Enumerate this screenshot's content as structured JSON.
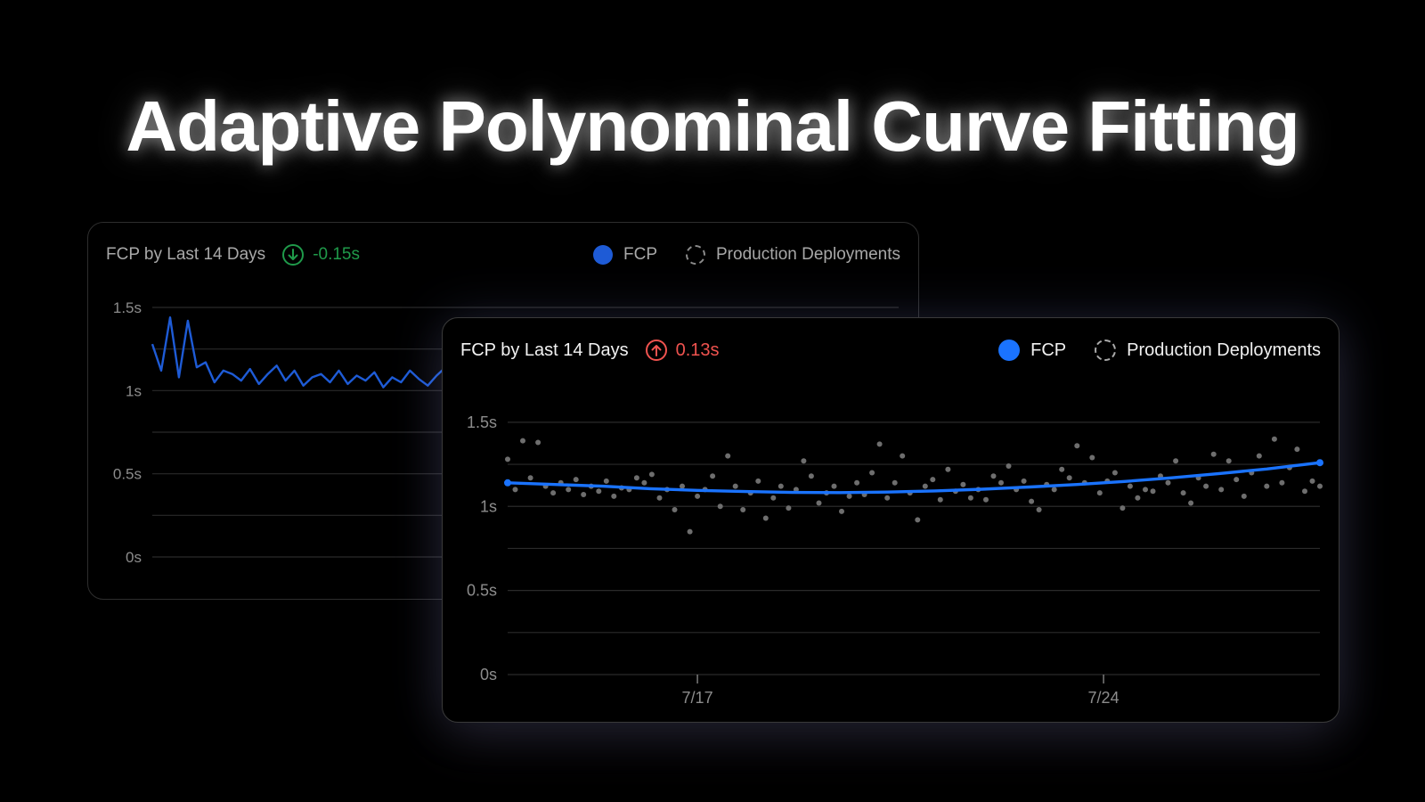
{
  "page": {
    "title": "Adaptive Polynominal Curve Fitting"
  },
  "colors": {
    "fcp_back": "#1e5bd6",
    "fcp_front": "#1a73ff",
    "points": "#6e6e6e",
    "delta_down": "#1f9a4a",
    "delta_up": "#f0534f"
  },
  "cards": {
    "back": {
      "title": "FCP by Last 14 Days",
      "delta": "-0.15s",
      "delta_icon": "arrow-down-circle-icon",
      "legend": {
        "fcp": "FCP",
        "deployments": "Production Deployments"
      }
    },
    "front": {
      "title": "FCP by Last 14 Days",
      "delta": "0.13s",
      "delta_icon": "arrow-up-circle-icon",
      "legend": {
        "fcp": "FCP",
        "deployments": "Production Deployments"
      }
    }
  },
  "chart_data": [
    {
      "type": "line",
      "title": "FCP by Last 14 Days",
      "y_ticks": [
        "0s",
        "0.5s",
        "1s",
        "1.5s"
      ],
      "ylim": [
        0,
        1.5
      ],
      "x_ticks": [
        "7/17"
      ],
      "x_tick_positions": [
        1.0
      ],
      "grid": true,
      "xlim": [
        0,
        1.68
      ],
      "series": [
        {
          "name": "FCP",
          "x": [
            0.0,
            0.02,
            0.04,
            0.06,
            0.08,
            0.1,
            0.12,
            0.14,
            0.16,
            0.18,
            0.2,
            0.22,
            0.24,
            0.26,
            0.28,
            0.3,
            0.32,
            0.34,
            0.36,
            0.38,
            0.4,
            0.42,
            0.44,
            0.46,
            0.48,
            0.5,
            0.52,
            0.54,
            0.56,
            0.58,
            0.6,
            0.62,
            0.64,
            0.66,
            0.68,
            0.7,
            0.72,
            0.74,
            0.76,
            0.78,
            0.8,
            0.82,
            0.84,
            0.86,
            0.88,
            0.9,
            0.92,
            0.94,
            0.96,
            0.98,
            1.0,
            1.02,
            1.04,
            1.06,
            1.08,
            1.1,
            1.12,
            1.14,
            1.16,
            1.18,
            1.2,
            1.22,
            1.24,
            1.26,
            1.28,
            1.3,
            1.32,
            1.34,
            1.36,
            1.38,
            1.4,
            1.42,
            1.44,
            1.46,
            1.48,
            1.5,
            1.52,
            1.54,
            1.56,
            1.58,
            1.6
          ],
          "y": [
            1.28,
            1.12,
            1.44,
            1.08,
            1.42,
            1.14,
            1.17,
            1.05,
            1.12,
            1.1,
            1.06,
            1.13,
            1.04,
            1.1,
            1.15,
            1.06,
            1.12,
            1.03,
            1.08,
            1.1,
            1.05,
            1.12,
            1.04,
            1.09,
            1.06,
            1.11,
            1.02,
            1.08,
            1.05,
            1.12,
            1.07,
            1.03,
            1.09,
            1.14,
            1.06,
            1.1,
            1.15,
            1.05,
            1.12,
            1.08,
            0.96,
            1.12,
            0.88,
            1.06,
            1.1,
            1.0,
            1.14,
            0.98,
            1.06,
            1.12,
            1.08,
            1.3,
            1.02,
            1.06,
            0.97,
            1.1,
            1.04,
            1.08,
            0.95,
            1.06,
            1.1,
            1.02,
            1.04,
            1.2,
            0.98,
            1.08,
            1.12,
            1.34,
            1.06,
            1.1,
            1.04,
            1.12,
            1.07,
            1.02,
            1.1,
            1.05,
            1.13,
            1.08,
            1.04,
            1.1,
            1.06
          ]
        }
      ]
    },
    {
      "type": "scatter",
      "title": "FCP by Last 14 Days",
      "y_ticks": [
        "0s",
        "0.5s",
        "1s",
        "1.5s"
      ],
      "ylim": [
        0,
        1.6
      ],
      "x_ticks": [
        "7/17",
        "7/24"
      ],
      "x_tick_positions": [
        1.0,
        3.14
      ],
      "grid": true,
      "xlim": [
        0,
        4.28
      ],
      "series": [
        {
          "name": "FCP",
          "kind": "trend",
          "x": [
            0.0,
            0.25,
            0.5,
            0.75,
            1.0,
            1.25,
            1.5,
            1.75,
            2.0,
            2.25,
            2.5,
            2.75,
            3.0,
            3.25,
            3.5,
            3.75,
            4.0,
            4.28
          ],
          "y": [
            1.14,
            1.13,
            1.12,
            1.105,
            1.095,
            1.088,
            1.083,
            1.082,
            1.085,
            1.092,
            1.102,
            1.115,
            1.13,
            1.148,
            1.17,
            1.195,
            1.222,
            1.26
          ]
        },
        {
          "name": "",
          "kind": "points",
          "x": [
            0.0,
            0.04,
            0.08,
            0.12,
            0.16,
            0.2,
            0.24,
            0.28,
            0.32,
            0.36,
            0.4,
            0.44,
            0.48,
            0.52,
            0.56,
            0.6,
            0.64,
            0.68,
            0.72,
            0.76,
            0.8,
            0.84,
            0.88,
            0.92,
            0.96,
            1.0,
            1.04,
            1.08,
            1.12,
            1.16,
            1.2,
            1.24,
            1.28,
            1.32,
            1.36,
            1.4,
            1.44,
            1.48,
            1.52,
            1.56,
            1.6,
            1.64,
            1.68,
            1.72,
            1.76,
            1.8,
            1.84,
            1.88,
            1.92,
            1.96,
            2.0,
            2.04,
            2.08,
            2.12,
            2.16,
            2.2,
            2.24,
            2.28,
            2.32,
            2.36,
            2.4,
            2.44,
            2.48,
            2.52,
            2.56,
            2.6,
            2.64,
            2.68,
            2.72,
            2.76,
            2.8,
            2.84,
            2.88,
            2.92,
            2.96,
            3.0,
            3.04,
            3.08,
            3.12,
            3.16,
            3.2,
            3.24,
            3.28,
            3.32,
            3.36,
            3.4,
            3.44,
            3.48,
            3.52,
            3.56,
            3.6,
            3.64,
            3.68,
            3.72,
            3.76,
            3.8,
            3.84,
            3.88,
            3.92,
            3.96,
            4.0,
            4.04,
            4.08,
            4.12,
            4.16,
            4.2,
            4.24,
            4.28
          ],
          "y": [
            1.28,
            1.1,
            1.39,
            1.17,
            1.38,
            1.12,
            1.08,
            1.14,
            1.1,
            1.16,
            1.07,
            1.12,
            1.09,
            1.15,
            1.06,
            1.11,
            1.1,
            1.17,
            1.14,
            1.19,
            1.05,
            1.1,
            0.98,
            1.12,
            0.85,
            1.06,
            1.1,
            1.18,
            1.0,
            1.3,
            1.12,
            0.98,
            1.08,
            1.15,
            0.93,
            1.05,
            1.12,
            0.99,
            1.1,
            1.27,
            1.18,
            1.02,
            1.08,
            1.12,
            0.97,
            1.06,
            1.14,
            1.07,
            1.2,
            1.37,
            1.05,
            1.14,
            1.3,
            1.08,
            0.92,
            1.12,
            1.16,
            1.04,
            1.22,
            1.09,
            1.13,
            1.05,
            1.1,
            1.04,
            1.18,
            1.14,
            1.24,
            1.1,
            1.15,
            1.03,
            0.98,
            1.13,
            1.1,
            1.22,
            1.17,
            1.36,
            1.14,
            1.29,
            1.08,
            1.15,
            1.2,
            0.99,
            1.12,
            1.05,
            1.1,
            1.09,
            1.18,
            1.14,
            1.27,
            1.08,
            1.02,
            1.17,
            1.12,
            1.31,
            1.1,
            1.27,
            1.16,
            1.06,
            1.2,
            1.3,
            1.12,
            1.4,
            1.14,
            1.23,
            1.34,
            1.09,
            1.15,
            1.12
          ]
        }
      ]
    }
  ]
}
